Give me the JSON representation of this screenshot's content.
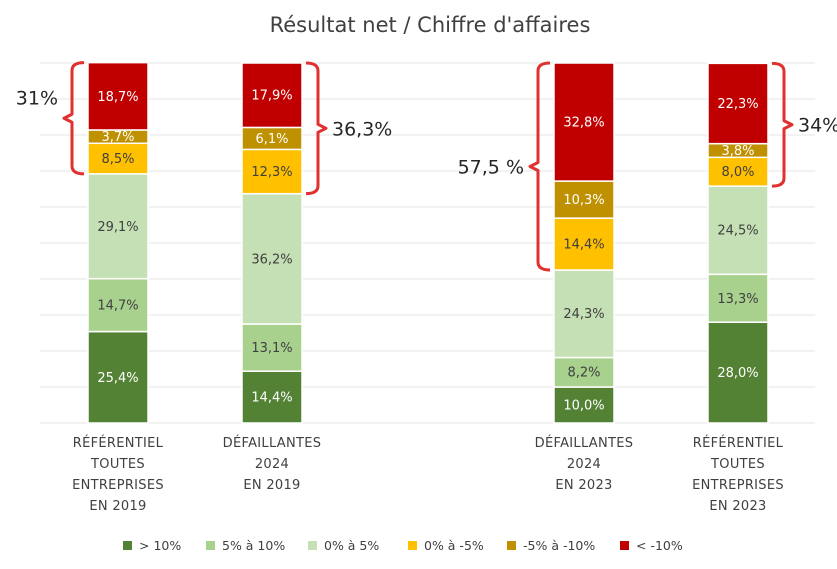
{
  "chart_data": {
    "type": "bar",
    "stacked": true,
    "percent": true,
    "title": "Résultat net / Chiffre d'affaires",
    "ylim": [
      0,
      100
    ],
    "grid": true,
    "categories": [
      [
        "RÉFÉRENTIEL",
        "TOUTES",
        "ENTREPRISES",
        "EN 2019"
      ],
      [
        "DÉFAILLANTES",
        "2024",
        "EN 2019"
      ],
      [
        "DÉFAILLANTES",
        "2024",
        "EN 2023"
      ],
      [
        "RÉFÉRENTIEL",
        "TOUTES",
        "ENTREPRISES",
        "EN 2023"
      ]
    ],
    "series": [
      {
        "name": "> 10%",
        "color": "#548235",
        "text_color": "#ffffff",
        "values": [
          25.4,
          14.4,
          10.0,
          28.0
        ],
        "labels": [
          "25,4%",
          "14,4%",
          "10,0%",
          "28,0%"
        ]
      },
      {
        "name": "5% à 10%",
        "color": "#a9d18e",
        "text_color": "#404040",
        "values": [
          14.7,
          13.1,
          8.2,
          13.3
        ],
        "labels": [
          "14,7%",
          "13,1%",
          "8,2%",
          "13,3%"
        ]
      },
      {
        "name": "0% à 5%",
        "color": "#c5e0b4",
        "text_color": "#404040",
        "values": [
          29.1,
          36.2,
          24.3,
          24.5
        ],
        "labels": [
          "29,1%",
          "36,2%",
          "24,3%",
          "24,5%"
        ]
      },
      {
        "name": "0% à -5%",
        "color": "#ffc000",
        "text_color": "#404040",
        "values": [
          8.5,
          12.3,
          14.4,
          8.0
        ],
        "labels": [
          "8,5%",
          "12,3%",
          "14,4%",
          "8,0%"
        ]
      },
      {
        "name": "-5% à -10%",
        "color": "#bf9000",
        "text_color": "#ffffff",
        "values": [
          3.7,
          6.1,
          10.3,
          3.8
        ],
        "labels": [
          "3,7%",
          "6,1%",
          "10,3%",
          "3,8%"
        ]
      },
      {
        "name": "< -10%",
        "color": "#c00000",
        "text_color": "#ffffff",
        "values": [
          18.7,
          17.9,
          32.8,
          22.3
        ],
        "labels": [
          "18,7%",
          "17,9%",
          "32,8%",
          "22,3%"
        ]
      }
    ],
    "annotations": [
      {
        "bar": 0,
        "text": "31%",
        "side": "left",
        "series_from": 3,
        "series_to": 5
      },
      {
        "bar": 1,
        "text": "36,3%",
        "side": "right",
        "series_from": 3,
        "series_to": 5
      },
      {
        "bar": 2,
        "text": "57,5 %",
        "side": "left",
        "series_from": 3,
        "series_to": 5
      },
      {
        "bar": 3,
        "text": "34%",
        "side": "right",
        "series_from": 3,
        "series_to": 5
      }
    ],
    "bracket_color": "#e03030"
  }
}
